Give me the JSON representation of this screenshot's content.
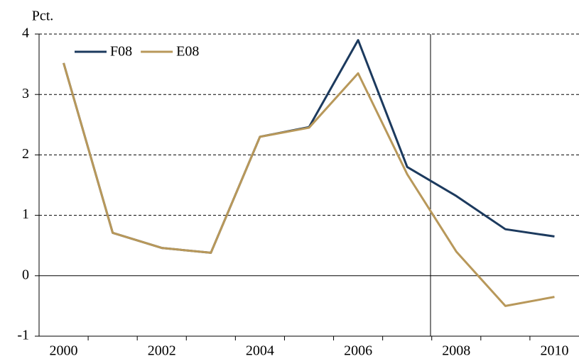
{
  "chart_data": {
    "type": "line",
    "y_unit": "Pct.",
    "categories": [
      "2000",
      null,
      "2002",
      null,
      "2004",
      null,
      "2006",
      null,
      "2008",
      null,
      "2010"
    ],
    "series": [
      {
        "name": "F08",
        "color": "#1c3a5e",
        "values": [
          3.52,
          0.71,
          0.46,
          0.38,
          2.3,
          2.46,
          3.9,
          1.8,
          1.32,
          0.77,
          0.65
        ]
      },
      {
        "name": "E08",
        "color": "#b8985a",
        "values": [
          3.52,
          0.71,
          0.46,
          0.38,
          2.3,
          2.45,
          3.35,
          1.68,
          0.4,
          -0.5,
          -0.35
        ]
      }
    ],
    "ylim": [
      -1,
      4
    ],
    "yticks": [
      -1,
      0,
      1,
      2,
      3,
      4
    ],
    "grid": true,
    "legend": "top-left"
  }
}
